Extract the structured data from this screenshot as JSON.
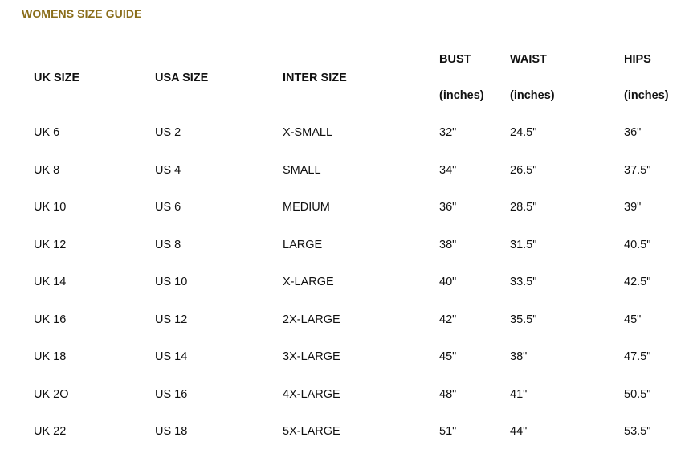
{
  "title": "WOMENS SIZE GUIDE",
  "colors": {
    "title": "#8a6d1a",
    "text": "#111111"
  },
  "table": {
    "headers": [
      {
        "label": "UK SIZE",
        "unit": ""
      },
      {
        "label": "USA SIZE",
        "unit": ""
      },
      {
        "label": "INTER SIZE",
        "unit": ""
      },
      {
        "label": "BUST",
        "unit": "(inches)"
      },
      {
        "label": "WAIST",
        "unit": "(inches)"
      },
      {
        "label": "HIPS",
        "unit": "(inches)"
      }
    ],
    "rows": [
      [
        "UK 6",
        "US 2",
        "X-SMALL",
        "32\"",
        "24.5\"",
        "36\""
      ],
      [
        "UK 8",
        "US 4",
        "SMALL",
        "34\"",
        "26.5\"",
        "37.5\""
      ],
      [
        "UK 10",
        "US 6",
        "MEDIUM",
        "36\"",
        "28.5\"",
        "39\""
      ],
      [
        "UK 12",
        "US 8",
        "LARGE",
        "38\"",
        "31.5\"",
        "40.5\""
      ],
      [
        "UK 14",
        "US 10",
        "X-LARGE",
        "40\"",
        "33.5\"",
        "42.5\""
      ],
      [
        "UK 16",
        "US 12",
        "2X-LARGE",
        "42\"",
        "35.5\"",
        "45\""
      ],
      [
        "UK 18",
        "US 14",
        "3X-LARGE",
        "45\"",
        "38\"",
        "47.5\""
      ],
      [
        "UK 2O",
        "US 16",
        "4X-LARGE",
        "48\"",
        "41\"",
        "50.5\""
      ],
      [
        "UK 22",
        "US 18",
        "5X-LARGE",
        "51\"",
        "44\"",
        "53.5\""
      ]
    ]
  }
}
